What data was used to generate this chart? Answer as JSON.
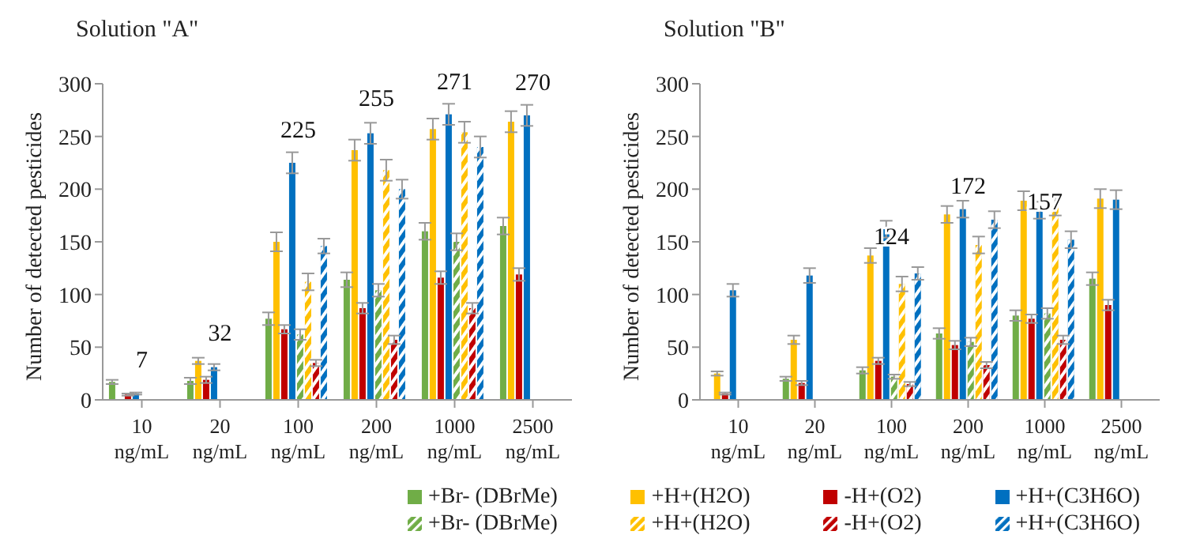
{
  "chart_data": [
    {
      "type": "bar",
      "title": "Solution \"A\"",
      "ylabel": "Number of detected pesticides",
      "categories": [
        "10 ng/mL",
        "20 ng/mL",
        "100 ng/mL",
        "200 ng/mL",
        "1000 ng/mL",
        "2500 ng/mL"
      ],
      "ylim": [
        0,
        300
      ],
      "yticks": [
        0,
        50,
        100,
        150,
        200,
        250,
        300
      ],
      "grid": false,
      "legend": "bottom",
      "annotations": [
        {
          "text": "7",
          "x": "10 ng/mL",
          "y": 7
        },
        {
          "text": "32",
          "x": "20 ng/mL",
          "y": 32
        },
        {
          "text": "225",
          "x": "100 ng/mL",
          "y": 225
        },
        {
          "text": "255",
          "x": "200 ng/mL",
          "y": 255
        },
        {
          "text": "271",
          "x": "1000 ng/mL",
          "y": 271
        },
        {
          "text": "270",
          "x": "2500 ng/mL",
          "y": 270
        }
      ],
      "series": [
        {
          "name": "+Br- (DBrMe)",
          "color": "#70ad47",
          "values": [
            17,
            18,
            77,
            114,
            160,
            165
          ],
          "errors": [
            2,
            3,
            6,
            7,
            8,
            8
          ]
        },
        {
          "name": "+H+(H2O)",
          "color": "#ffc000",
          "values": [
            null,
            37,
            150,
            237,
            257,
            264
          ],
          "errors": [
            null,
            3,
            9,
            10,
            10,
            10
          ]
        },
        {
          "name": "-H+(O2)",
          "color": "#c00000",
          "values": [
            5,
            19,
            67,
            87,
            116,
            119
          ],
          "errors": [
            1,
            3,
            4,
            5,
            6,
            6
          ]
        },
        {
          "name": "+H+(C3H6O)",
          "color": "#0070c0",
          "values": [
            6,
            31,
            225,
            253,
            271,
            270
          ],
          "errors": [
            1,
            3,
            10,
            10,
            10,
            10
          ]
        },
        {
          "name": "+Br- (DBrMe)",
          "color": "#70ad47",
          "line_style": "dashed",
          "values": [
            null,
            null,
            62,
            104,
            150,
            null
          ],
          "errors": [
            null,
            null,
            5,
            6,
            8,
            null
          ]
        },
        {
          "name": "+H+(H2O)",
          "color": "#ffc000",
          "line_style": "dashed",
          "values": [
            null,
            null,
            112,
            218,
            254,
            null
          ],
          "errors": [
            null,
            null,
            8,
            10,
            10,
            null
          ]
        },
        {
          "name": "-H+(O2)",
          "color": "#c00000",
          "line_style": "dashed",
          "values": [
            null,
            null,
            35,
            57,
            87,
            null
          ],
          "errors": [
            null,
            null,
            3,
            4,
            5,
            null
          ]
        },
        {
          "name": "+H+(C3H6O)",
          "color": "#0070c0",
          "line_style": "dashed",
          "values": [
            null,
            null,
            146,
            200,
            240,
            null
          ],
          "errors": [
            null,
            null,
            7,
            9,
            10,
            null
          ]
        }
      ]
    },
    {
      "type": "bar",
      "title": "Solution \"B\"",
      "ylabel": "Number of detected pesticides",
      "categories": [
        "10 ng/mL",
        "20 ng/mL",
        "100 ng/mL",
        "200 ng/mL",
        "1000 ng/mL",
        "2500 ng/mL"
      ],
      "ylim": [
        0,
        300
      ],
      "yticks": [
        0,
        50,
        100,
        150,
        200,
        250,
        300
      ],
      "grid": false,
      "legend": "bottom",
      "annotations": [
        {
          "text": "124",
          "x": "100 ng/mL",
          "y": 124
        },
        {
          "text": "172",
          "x": "200 ng/mL",
          "y": 172
        },
        {
          "text": "157",
          "x": "1000 ng/mL",
          "y": 157
        }
      ],
      "series": [
        {
          "name": "+Br- (DBrMe)",
          "color": "#70ad47",
          "values": [
            null,
            20,
            28,
            63,
            80,
            115
          ],
          "errors": [
            null,
            2,
            3,
            5,
            5,
            6
          ]
        },
        {
          "name": "+H+(H2O)",
          "color": "#ffc000",
          "values": [
            25,
            57,
            137,
            176,
            189,
            191
          ],
          "errors": [
            2,
            4,
            7,
            8,
            9,
            9
          ]
        },
        {
          "name": "-H+(O2)",
          "color": "#c00000",
          "values": [
            6,
            16,
            37,
            52,
            77,
            90
          ],
          "errors": [
            1,
            2,
            3,
            4,
            4,
            5
          ]
        },
        {
          "name": "+H+(C3H6O)",
          "color": "#0070c0",
          "values": [
            104,
            118,
            162,
            181,
            180,
            190
          ],
          "errors": [
            6,
            7,
            8,
            8,
            8,
            9
          ]
        },
        {
          "name": "+Br- (DBrMe)",
          "color": "#70ad47",
          "line_style": "dashed",
          "values": [
            null,
            null,
            22,
            55,
            82,
            null
          ],
          "errors": [
            null,
            null,
            2,
            4,
            5,
            null
          ]
        },
        {
          "name": "+H+(H2O)",
          "color": "#ffc000",
          "line_style": "dashed",
          "values": [
            null,
            null,
            110,
            147,
            184,
            null
          ],
          "errors": [
            null,
            null,
            7,
            8,
            9,
            null
          ]
        },
        {
          "name": "-H+(O2)",
          "color": "#c00000",
          "line_style": "dashed",
          "values": [
            null,
            null,
            15,
            33,
            57,
            null
          ],
          "errors": [
            null,
            null,
            2,
            3,
            4,
            null
          ]
        },
        {
          "name": "+H+(C3H6O)",
          "color": "#0070c0",
          "line_style": "dashed",
          "values": [
            null,
            null,
            120,
            171,
            152,
            null
          ],
          "errors": [
            null,
            null,
            6,
            8,
            8,
            null
          ]
        }
      ]
    }
  ]
}
